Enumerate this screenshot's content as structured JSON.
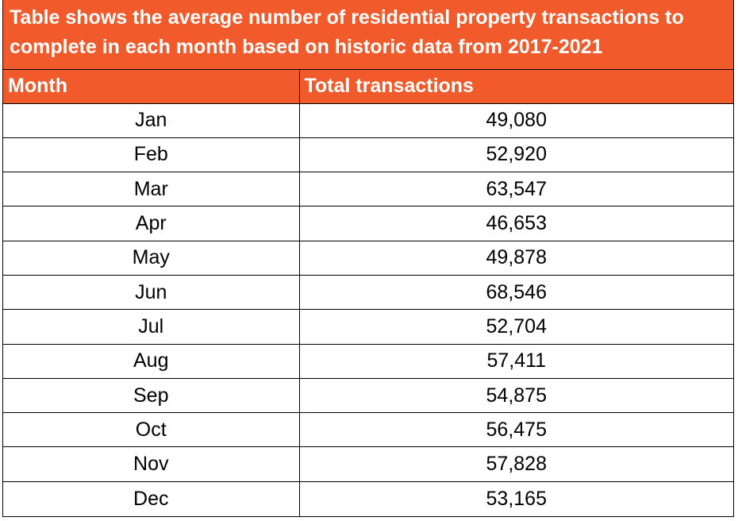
{
  "title": {
    "line1": "Table shows the average number of residential property transactions to",
    "line2": "complete in each month based on historic data from 2017-2021"
  },
  "colors": {
    "header_bg": "#f15a2b",
    "header_text": "#ffffff"
  },
  "columns": [
    "Month",
    "Total transactions"
  ],
  "rows": [
    {
      "month": "Jan",
      "total": "49,080"
    },
    {
      "month": "Feb",
      "total": "52,920"
    },
    {
      "month": "Mar",
      "total": "63,547"
    },
    {
      "month": "Apr",
      "total": "46,653"
    },
    {
      "month": "May",
      "total": "49,878"
    },
    {
      "month": "Jun",
      "total": "68,546"
    },
    {
      "month": "Jul",
      "total": "52,704"
    },
    {
      "month": "Aug",
      "total": "57,411"
    },
    {
      "month": "Sep",
      "total": "54,875"
    },
    {
      "month": "Oct",
      "total": "56,475"
    },
    {
      "month": "Nov",
      "total": "57,828"
    },
    {
      "month": "Dec",
      "total": "53,165"
    }
  ]
}
